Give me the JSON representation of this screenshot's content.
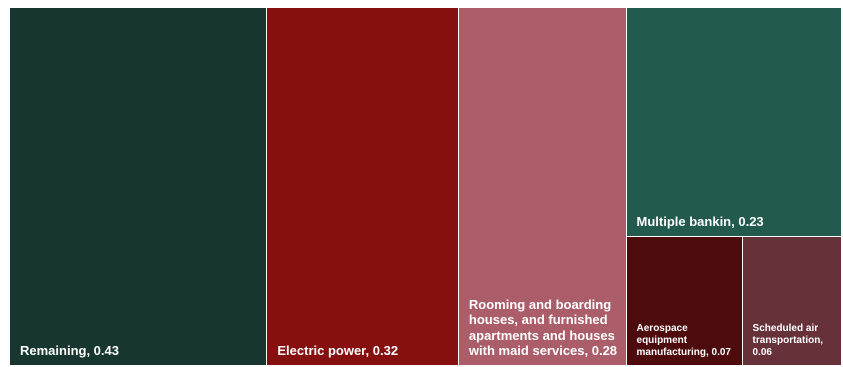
{
  "chart_data": {
    "type": "treemap",
    "title": "",
    "items": [
      {
        "label": "Remaining",
        "value": 0.43,
        "color": "#17362f"
      },
      {
        "label": "Electric power",
        "value": 0.32,
        "color": "#861010"
      },
      {
        "label": "Rooming and boarding houses, and furnished apartments and houses with maid services",
        "value": 0.28,
        "color": "#ab5d6a"
      },
      {
        "label": "Multiple bankin",
        "value": 0.23,
        "color": "#235a4e"
      },
      {
        "label": "Aerospace equipment manufacturing",
        "value": 0.07,
        "color": "#4d0b0d"
      },
      {
        "label": "Scheduled air transportation",
        "value": 0.06,
        "color": "#663138"
      }
    ],
    "label_format": "{label}, {value}"
  }
}
